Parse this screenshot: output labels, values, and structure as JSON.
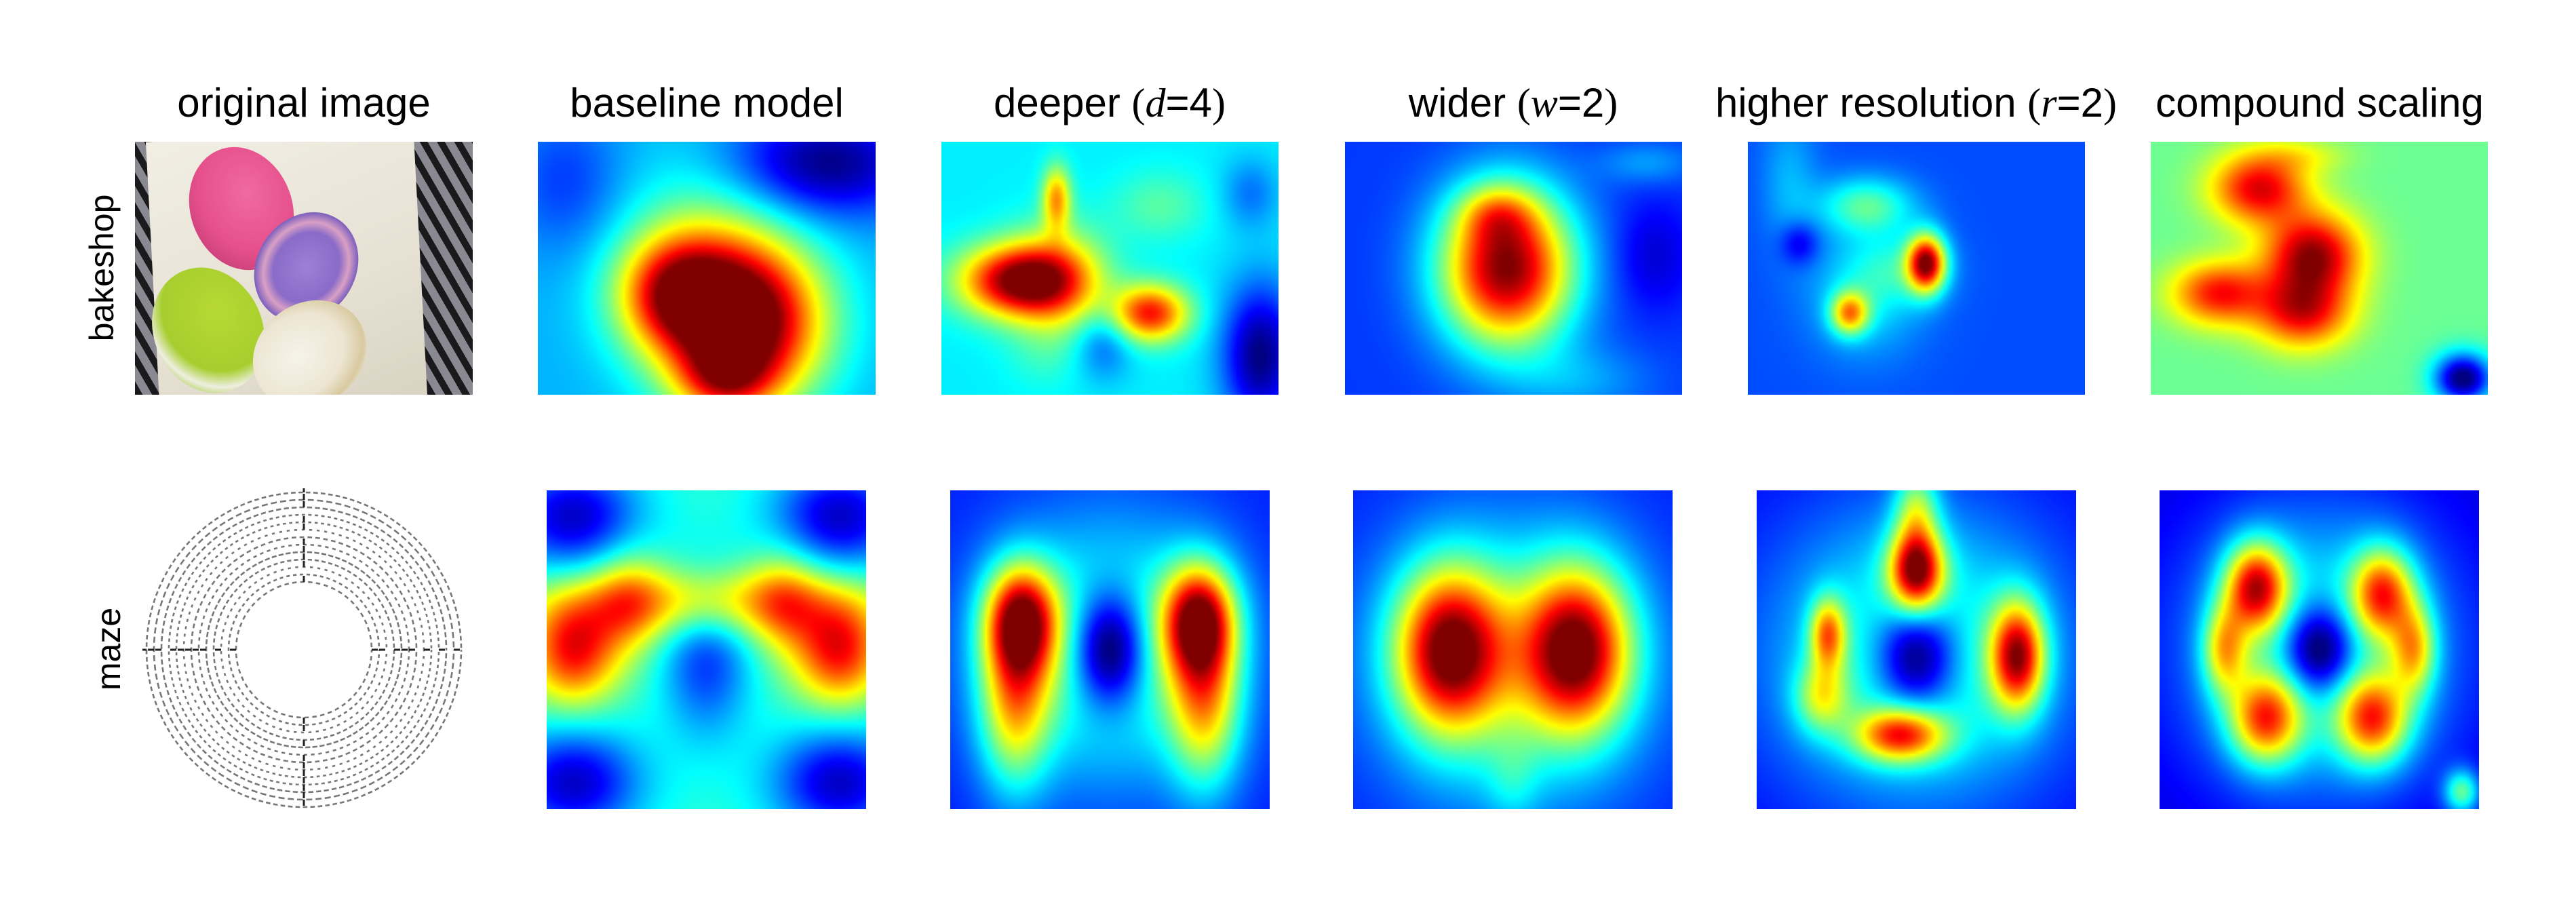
{
  "figure": {
    "column_titles": [
      {
        "text": "original image"
      },
      {
        "text": "baseline model"
      },
      {
        "prefix": "deeper ",
        "var": "d",
        "suffix": "=4"
      },
      {
        "prefix": "wider ",
        "var": "w",
        "suffix": "=2"
      },
      {
        "prefix": "higher resolution ",
        "var": "r",
        "suffix": "=2"
      },
      {
        "text": "compound scaling"
      }
    ],
    "row_labels": [
      "bakeshop",
      "maze"
    ],
    "colormap": "jet",
    "colors": {
      "jet_low": "#00008f",
      "jet_blue": "#0000ff",
      "jet_cyan": "#00ffff",
      "jet_yellow": "#ffff00",
      "jet_red": "#ff0000",
      "jet_high": "#800000"
    }
  },
  "chart_data": {
    "type": "heatmap",
    "title": "Class Activation Maps for models with different scaling methods",
    "columns": [
      "original image",
      "baseline model",
      "deeper (d=4)",
      "wider (w=2)",
      "higher resolution (r=2)",
      "compound scaling"
    ],
    "rows": [
      "bakeshop",
      "maze"
    ],
    "colormap": "jet",
    "value_range": [
      0,
      1
    ],
    "panels": {
      "bakeshop": {
        "baseline model": {
          "base": 0.3,
          "blobs": [
            [
              0.62,
              0.72,
              0.16,
              0.22,
              0.72
            ],
            [
              0.4,
              0.6,
              0.12,
              0.16,
              0.45
            ],
            [
              0.5,
              0.5,
              0.18,
              0.3,
              0.2
            ],
            [
              0.85,
              0.08,
              0.2,
              0.15,
              -0.3
            ],
            [
              0.08,
              0.15,
              0.12,
              0.2,
              -0.12
            ],
            [
              0.55,
              0.95,
              0.1,
              0.1,
              0.3
            ]
          ]
        },
        "deeper (d=4)": {
          "base": 0.36,
          "blobs": [
            [
              0.22,
              0.55,
              0.12,
              0.1,
              0.6
            ],
            [
              0.35,
              0.55,
              0.1,
              0.15,
              0.3
            ],
            [
              0.62,
              0.68,
              0.08,
              0.08,
              0.5
            ],
            [
              0.34,
              0.22,
              0.03,
              0.09,
              0.35
            ],
            [
              0.95,
              0.85,
              0.08,
              0.2,
              -0.36
            ],
            [
              0.92,
              0.2,
              0.06,
              0.1,
              -0.12
            ],
            [
              0.3,
              0.85,
              0.08,
              0.1,
              0.05
            ],
            [
              0.48,
              0.8,
              0.06,
              0.1,
              -0.15
            ],
            [
              0.65,
              0.25,
              0.1,
              0.1,
              0.1
            ]
          ]
        },
        "wider (w=2)": {
          "base": 0.18,
          "blobs": [
            [
              0.48,
              0.5,
              0.14,
              0.22,
              0.82
            ],
            [
              0.45,
              0.28,
              0.08,
              0.08,
              0.2
            ],
            [
              0.9,
              0.08,
              0.1,
              0.06,
              0.1
            ],
            [
              0.7,
              0.95,
              0.15,
              0.1,
              0.1
            ],
            [
              0.92,
              0.45,
              0.08,
              0.15,
              -0.1
            ]
          ]
        },
        "higher resolution (r=2)": {
          "base": 0.2,
          "blobs": [
            [
              0.53,
              0.48,
              0.04,
              0.08,
              0.72
            ],
            [
              0.3,
              0.68,
              0.04,
              0.06,
              0.45
            ],
            [
              0.35,
              0.25,
              0.1,
              0.08,
              0.25
            ],
            [
              0.35,
              0.6,
              0.12,
              0.18,
              0.15
            ],
            [
              0.45,
              0.5,
              0.1,
              0.1,
              0.12
            ],
            [
              0.12,
              0.15,
              0.06,
              0.2,
              0.1
            ],
            [
              0.15,
              0.4,
              0.04,
              0.06,
              -0.15
            ]
          ]
        },
        "compound scaling": {
          "base": 0.48,
          "blobs": [
            [
              0.32,
              0.18,
              0.1,
              0.1,
              0.42
            ],
            [
              0.48,
              0.45,
              0.1,
              0.12,
              0.5
            ],
            [
              0.2,
              0.6,
              0.1,
              0.09,
              0.38
            ],
            [
              0.45,
              0.68,
              0.1,
              0.1,
              0.38
            ],
            [
              0.93,
              0.94,
              0.06,
              0.07,
              -0.5
            ],
            [
              0.45,
              0.05,
              0.1,
              0.05,
              0.1
            ]
          ]
        }
      },
      "maze": {
        "baseline model": {
          "base": 0.42,
          "blobs": [
            [
              0.08,
              0.5,
              0.1,
              0.12,
              0.45
            ],
            [
              0.92,
              0.5,
              0.1,
              0.12,
              0.45
            ],
            [
              0.5,
              0.35,
              0.3,
              0.08,
              0.3
            ],
            [
              0.25,
              0.35,
              0.08,
              0.12,
              0.2
            ],
            [
              0.75,
              0.35,
              0.08,
              0.12,
              0.2
            ],
            [
              0.5,
              0.52,
              0.1,
              0.18,
              -0.25
            ],
            [
              0.08,
              0.08,
              0.15,
              0.12,
              -0.35
            ],
            [
              0.92,
              0.08,
              0.15,
              0.12,
              -0.35
            ],
            [
              0.08,
              0.92,
              0.15,
              0.12,
              -0.35
            ],
            [
              0.92,
              0.92,
              0.15,
              0.12,
              -0.35
            ]
          ]
        },
        "deeper (d=4)": {
          "base": 0.15,
          "blobs": [
            [
              0.22,
              0.4,
              0.08,
              0.12,
              0.62
            ],
            [
              0.78,
              0.4,
              0.08,
              0.12,
              0.62
            ],
            [
              0.2,
              0.65,
              0.08,
              0.2,
              0.45
            ],
            [
              0.8,
              0.65,
              0.08,
              0.2,
              0.45
            ],
            [
              0.5,
              0.5,
              0.26,
              0.28,
              0.35
            ],
            [
              0.5,
              0.5,
              0.08,
              0.13,
              -0.5
            ]
          ]
        },
        "wider (w=2)": {
          "base": 0.15,
          "blobs": [
            [
              0.3,
              0.5,
              0.12,
              0.18,
              0.72
            ],
            [
              0.7,
              0.5,
              0.12,
              0.18,
              0.72
            ],
            [
              0.5,
              0.55,
              0.3,
              0.32,
              0.28
            ],
            [
              0.5,
              0.92,
              0.06,
              0.1,
              0.1
            ]
          ]
        },
        "higher resolution (r=2)": {
          "base": 0.12,
          "blobs": [
            [
              0.5,
              0.25,
              0.06,
              0.09,
              0.7
            ],
            [
              0.82,
              0.52,
              0.06,
              0.12,
              0.68
            ],
            [
              0.45,
              0.77,
              0.1,
              0.06,
              0.55
            ],
            [
              0.22,
              0.45,
              0.04,
              0.08,
              0.45
            ],
            [
              0.2,
              0.65,
              0.06,
              0.08,
              0.3
            ],
            [
              0.5,
              0.52,
              0.32,
              0.32,
              0.35
            ],
            [
              0.5,
              0.52,
              0.09,
              0.12,
              -0.45
            ],
            [
              0.5,
              0.05,
              0.05,
              0.1,
              0.3
            ]
          ]
        },
        "compound scaling": {
          "base": 0.08,
          "blobs": [
            [
              0.3,
              0.3,
              0.07,
              0.1,
              0.65
            ],
            [
              0.7,
              0.32,
              0.07,
              0.1,
              0.55
            ],
            [
              0.33,
              0.72,
              0.08,
              0.1,
              0.55
            ],
            [
              0.67,
              0.72,
              0.08,
              0.1,
              0.55
            ],
            [
              0.2,
              0.5,
              0.05,
              0.1,
              0.4
            ],
            [
              0.8,
              0.5,
              0.05,
              0.1,
              0.4
            ],
            [
              0.5,
              0.5,
              0.3,
              0.32,
              0.35
            ],
            [
              0.5,
              0.5,
              0.08,
              0.1,
              -0.45
            ],
            [
              0.95,
              0.95,
              0.04,
              0.05,
              0.35
            ]
          ]
        }
      }
    }
  }
}
